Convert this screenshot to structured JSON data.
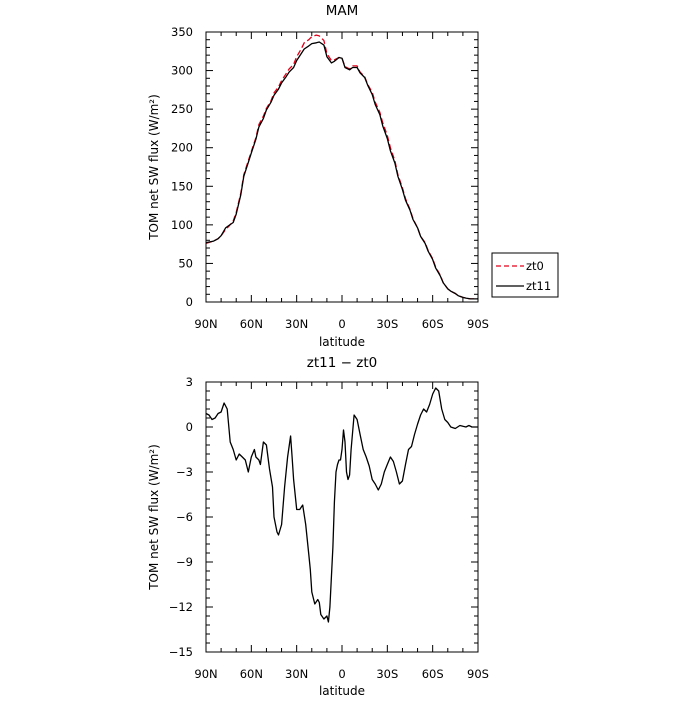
{
  "chart_data": [
    {
      "type": "line",
      "title": "MAM",
      "xlabel": "latitude",
      "ylabel": "TOM net SW flux (W/m²)",
      "xlim": [
        90,
        -90
      ],
      "ylim": [
        0,
        350
      ],
      "x_ticks": [
        90,
        60,
        30,
        0,
        -30,
        -60,
        -90
      ],
      "x_tick_labels": [
        "90N",
        "60N",
        "30N",
        "0",
        "30S",
        "60S",
        "90S"
      ],
      "y_ticks": [
        0,
        50,
        100,
        150,
        200,
        250,
        300,
        350
      ],
      "y_tick_labels": [
        "0",
        "50",
        "100",
        "150",
        "200",
        "250",
        "300",
        "350"
      ],
      "legend_position": "right",
      "series": [
        {
          "name": "zt0",
          "color": "#e0001a",
          "dash": "dashed",
          "x": [
            90,
            85,
            82,
            80,
            77,
            75,
            72,
            70,
            67,
            65,
            62,
            60,
            57,
            55,
            52,
            50,
            47,
            45,
            42,
            40,
            37,
            35,
            32,
            30,
            27,
            25,
            22,
            20,
            17,
            15,
            12,
            10,
            7,
            5,
            2,
            0,
            -2,
            -5,
            -7,
            -10,
            -12,
            -15,
            -17,
            -20,
            -22,
            -25,
            -27,
            -30,
            -32,
            -35,
            -37,
            -40,
            -42,
            -45,
            -47,
            -50,
            -52,
            -55,
            -57,
            -60,
            -62,
            -65,
            -67,
            -70,
            -72,
            -75,
            -77,
            -80,
            -82,
            -85,
            -87,
            -90
          ],
          "y": [
            76,
            79,
            82,
            86,
            94,
            98,
            105,
            116,
            141,
            165,
            183,
            195,
            213,
            230,
            241,
            251,
            261,
            271,
            279,
            287,
            296,
            302,
            308,
            318,
            328,
            336,
            340,
            344,
            346,
            345,
            339,
            322,
            313,
            314,
            317,
            316,
            305,
            302,
            306,
            306,
            298,
            292,
            282,
            272,
            259,
            246,
            232,
            216,
            200,
            183,
            165,
            148,
            134,
            120,
            108,
            96,
            85,
            77,
            67,
            56,
            45,
            35,
            25,
            17,
            14,
            11,
            8,
            6,
            5,
            4,
            4,
            4
          ]
        },
        {
          "name": "zt11",
          "color": "#000000",
          "dash": "solid",
          "x": [
            90,
            85,
            82,
            80,
            77,
            75,
            72,
            70,
            67,
            65,
            62,
            60,
            57,
            55,
            52,
            50,
            47,
            45,
            42,
            40,
            37,
            35,
            32,
            30,
            27,
            25,
            22,
            20,
            17,
            15,
            12,
            10,
            7,
            5,
            2,
            0,
            -2,
            -5,
            -7,
            -10,
            -12,
            -15,
            -17,
            -20,
            -22,
            -25,
            -27,
            -30,
            -32,
            -35,
            -37,
            -40,
            -42,
            -45,
            -47,
            -50,
            -52,
            -55,
            -57,
            -60,
            -62,
            -65,
            -67,
            -70,
            -72,
            -75,
            -77,
            -80,
            -82,
            -85,
            -87,
            -90
          ],
          "y": [
            77,
            79,
            82,
            86,
            96,
            99,
            103,
            114,
            139,
            163,
            181,
            193,
            211,
            227,
            238,
            249,
            259,
            268,
            276,
            284,
            292,
            298,
            304,
            313,
            322,
            328,
            332,
            335,
            336,
            337,
            333,
            318,
            310,
            312,
            317,
            316,
            304,
            301,
            304,
            304,
            297,
            291,
            281,
            269,
            256,
            243,
            228,
            212,
            196,
            180,
            163,
            146,
            132,
            119,
            107,
            96,
            85,
            76,
            66,
            55,
            44,
            34,
            25,
            17,
            14,
            11,
            8,
            6,
            5,
            4,
            4,
            4
          ]
        }
      ]
    },
    {
      "type": "line",
      "title": "zt11 − zt0",
      "xlabel": "latitude",
      "ylabel": "TOM net SW flux (W/m²)",
      "xlim": [
        90,
        -90
      ],
      "ylim": [
        -15,
        3
      ],
      "x_ticks": [
        90,
        60,
        30,
        0,
        -30,
        -60,
        -90
      ],
      "x_tick_labels": [
        "90N",
        "60N",
        "30N",
        "0",
        "30S",
        "60S",
        "90S"
      ],
      "y_ticks": [
        3,
        0,
        -3,
        -6,
        -9,
        -12,
        -15
      ],
      "y_tick_labels": [
        "3",
        "0",
        "−3",
        "−6",
        "−9",
        "−12",
        "−15"
      ],
      "series": [
        {
          "color": "#000000",
          "dash": "solid",
          "x": [
            90,
            88,
            86,
            84,
            82,
            80,
            78,
            76,
            74,
            72,
            70,
            68,
            66,
            64,
            62,
            60,
            58,
            57,
            55,
            54,
            52,
            50,
            48,
            46,
            45,
            43,
            42,
            40,
            38,
            36,
            34,
            33,
            32,
            30,
            28,
            26,
            24,
            22,
            21,
            20,
            18,
            16,
            15,
            14,
            12,
            10,
            9,
            8,
            7,
            6,
            5,
            4,
            3,
            2,
            1,
            0,
            -1,
            -2,
            -3,
            -4,
            -5,
            -6,
            -8,
            -10,
            -12,
            -14,
            -16,
            -18,
            -20,
            -22,
            -24,
            -26,
            -28,
            -30,
            -32,
            -34,
            -36,
            -38,
            -40,
            -42,
            -44,
            -46,
            -48,
            -50,
            -52,
            -54,
            -56,
            -58,
            -60,
            -62,
            -64,
            -66,
            -68,
            -70,
            -72,
            -75,
            -78,
            -80,
            -82,
            -84,
            -86,
            -88,
            -90
          ],
          "y": [
            0.9,
            0.8,
            0.5,
            0.6,
            0.9,
            1.0,
            1.6,
            1.2,
            -1.0,
            -1.5,
            -2.2,
            -1.8,
            -2.0,
            -2.2,
            -3.0,
            -2.0,
            -1.5,
            -2.0,
            -2.2,
            -2.5,
            -1.0,
            -1.2,
            -2.8,
            -4.0,
            -6.0,
            -7.0,
            -7.2,
            -6.5,
            -4.0,
            -2.0,
            -0.6,
            -2.0,
            -3.5,
            -5.5,
            -5.5,
            -5.2,
            -6.5,
            -8.5,
            -9.5,
            -11.0,
            -11.8,
            -11.5,
            -11.7,
            -12.5,
            -12.8,
            -12.6,
            -13.0,
            -12.0,
            -10.0,
            -8.0,
            -5.0,
            -3.0,
            -2.5,
            -2.2,
            -2.2,
            -1.5,
            -0.2,
            -1.0,
            -3.0,
            -3.5,
            -3.2,
            -1.5,
            0.8,
            0.5,
            -0.5,
            -1.5,
            -2.0,
            -2.6,
            -3.5,
            -3.8,
            -4.2,
            -3.8,
            -3.0,
            -2.5,
            -2.0,
            -2.3,
            -3.0,
            -3.8,
            -3.6,
            -2.5,
            -1.5,
            -1.3,
            -0.5,
            0.2,
            0.8,
            1.2,
            1.0,
            1.5,
            2.2,
            2.6,
            2.4,
            1.2,
            0.5,
            0.3,
            0.0,
            -0.1,
            0.1,
            0.05,
            0.0,
            0.1,
            0.0,
            0.0,
            0.0
          ]
        }
      ]
    }
  ]
}
